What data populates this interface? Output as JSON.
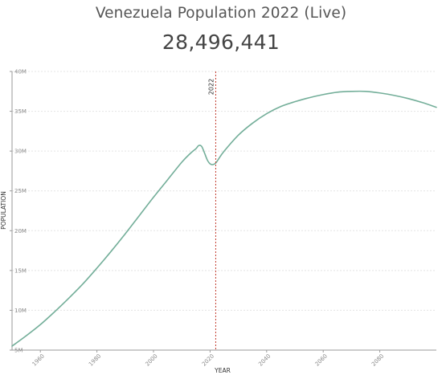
{
  "header": {
    "title": "Venezuela Population 2022 (Live)",
    "live_count": "28,496,441"
  },
  "colors": {
    "line": "#73ae99",
    "marker": "#c0392b",
    "grid": "#e4e4e4"
  },
  "chart_data": {
    "type": "line",
    "title": "Venezuela Population 2022 (Live)",
    "xlabel": "YEAR",
    "ylabel": "POPULATION",
    "xlim": [
      1950,
      2100
    ],
    "ylim": [
      5000000,
      40000000
    ],
    "x_ticks": [
      1960,
      1980,
      2000,
      2020,
      2040,
      2060,
      2080
    ],
    "y_ticks": [
      5000000,
      10000000,
      15000000,
      20000000,
      25000000,
      30000000,
      35000000,
      40000000
    ],
    "y_tick_labels": [
      "5M",
      "10M",
      "15M",
      "20M",
      "25M",
      "30M",
      "35M",
      "40M"
    ],
    "grid": true,
    "marker": {
      "x": 2022,
      "label": "2022"
    },
    "series": [
      {
        "x": [
          1950,
          1955,
          1960,
          1965,
          1970,
          1975,
          1980,
          1985,
          1990,
          1995,
          2000,
          2005,
          2010,
          2013,
          2015,
          2016,
          2017,
          2018,
          2019,
          2020,
          2021,
          2022,
          2023,
          2025,
          2030,
          2035,
          2040,
          2045,
          2050,
          2055,
          2060,
          2065,
          2070,
          2075,
          2080,
          2085,
          2090,
          2095,
          2100
        ],
        "values": [
          5500000,
          6800000,
          8200000,
          9800000,
          11500000,
          13300000,
          15300000,
          17400000,
          19600000,
          21900000,
          24200000,
          26400000,
          28600000,
          29700000,
          30300000,
          30700000,
          30600000,
          29800000,
          28900000,
          28400000,
          28300000,
          28500000,
          29000000,
          30000000,
          32000000,
          33500000,
          34700000,
          35600000,
          36200000,
          36700000,
          37100000,
          37400000,
          37500000,
          37500000,
          37300000,
          37000000,
          36600000,
          36100000,
          35500000
        ]
      }
    ]
  }
}
